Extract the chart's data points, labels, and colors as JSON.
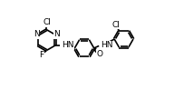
{
  "bg_color": "#ffffff",
  "line_color": "#000000",
  "lw": 1.2,
  "fs": 6.5,
  "xlim": [
    0,
    1.25
  ],
  "ylim": [
    0,
    1.0
  ]
}
